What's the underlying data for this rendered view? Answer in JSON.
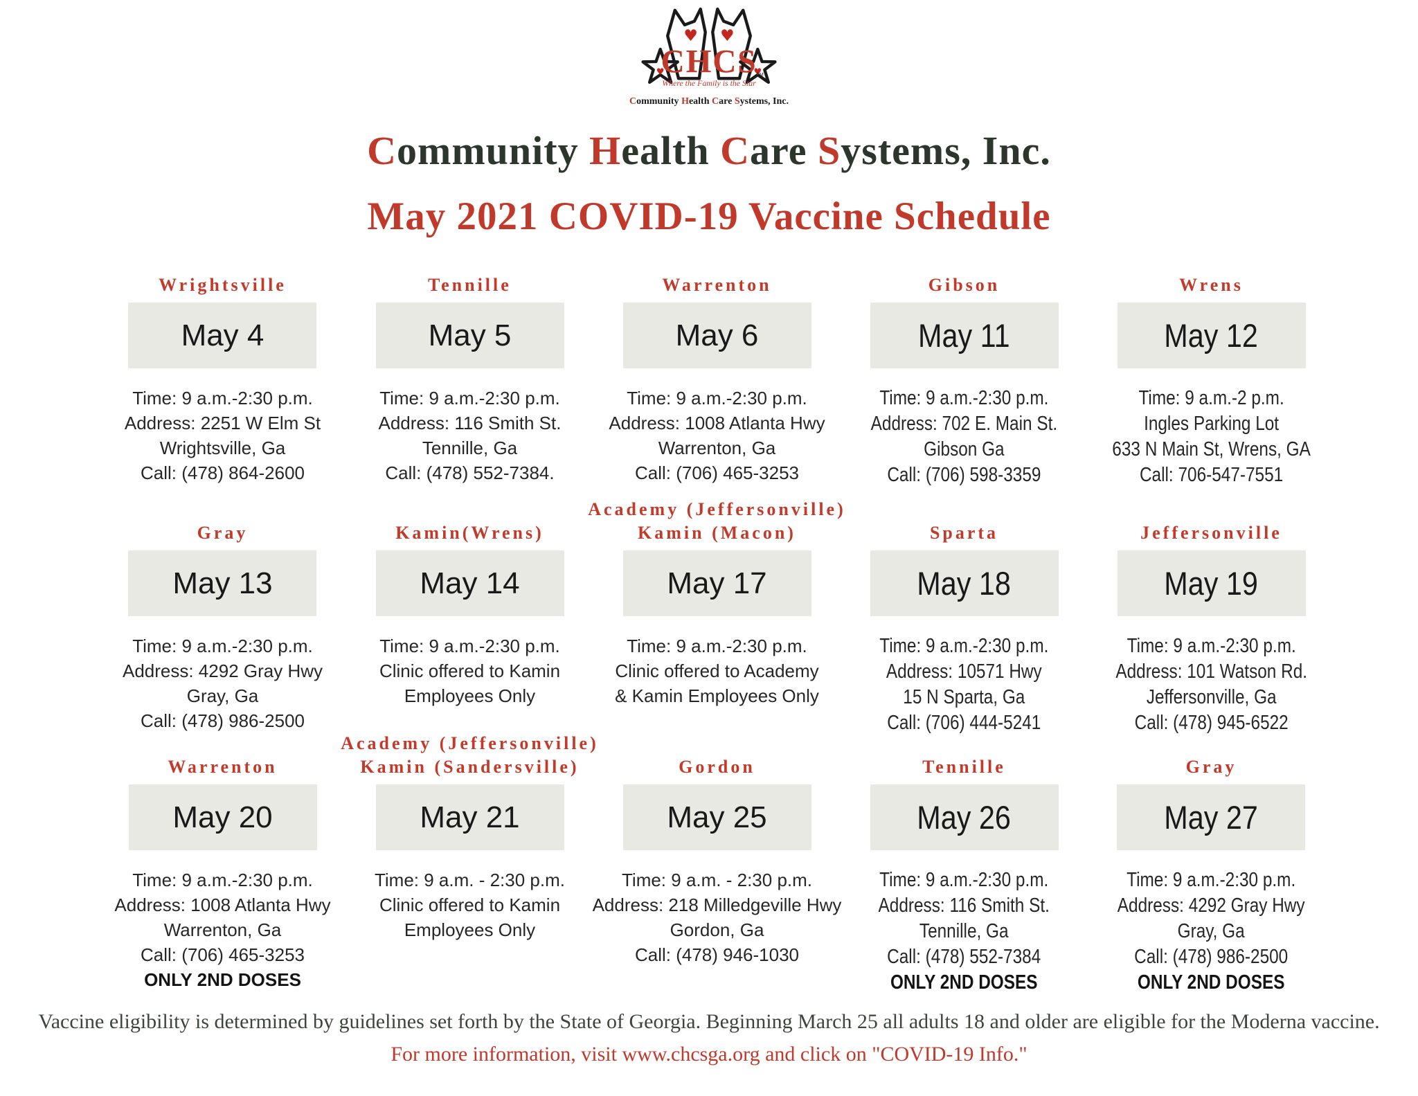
{
  "colors": {
    "accent_red": "#c0392b",
    "heading_dark": "#2c362c",
    "detail_text": "#272727",
    "date_box_bg": "#e9e9e3",
    "footer_dark": "#3c453c"
  },
  "logo": {
    "chcs": "CHCS",
    "tm": "TM",
    "tagline": "Where the Family is the Star",
    "brand": {
      "c1": "C",
      "r1": "ommunity ",
      "h1": "H",
      "r2": "ealth ",
      "c2": "C",
      "r3": "are ",
      "s1": "S",
      "r4": "ystems, Inc."
    }
  },
  "header": {
    "title": {
      "c1": "C",
      "r1": "ommunity ",
      "h1": "H",
      "r2": "ealth ",
      "c2": "C",
      "r3": "are ",
      "s1": "S",
      "r4": "ystems, Inc."
    },
    "subtitle": "May 2021 COVID-19 Vaccine Schedule"
  },
  "cards": [
    {
      "title": [
        "Wrightsville"
      ],
      "date": "May 4",
      "lines": [
        "Time: 9 a.m.-2:30 p.m.",
        "Address: 2251 W Elm St",
        "Wrightsville, Ga",
        "Call: (478) 864-2600"
      ],
      "doses": ""
    },
    {
      "title": [
        "Tennille"
      ],
      "date": "May 5",
      "lines": [
        "Time: 9 a.m.-2:30 p.m.",
        "Address: 116 Smith St.",
        "Tennille, Ga",
        "Call: (478) 552-7384."
      ],
      "doses": ""
    },
    {
      "title": [
        "Warrenton"
      ],
      "date": "May 6",
      "lines": [
        "Time: 9 a.m.-2:30 p.m.",
        "Address: 1008 Atlanta Hwy",
        "Warrenton, Ga",
        "Call: (706) 465-3253"
      ],
      "doses": ""
    },
    {
      "title": [
        "Gibson"
      ],
      "date": "May 11",
      "lines": [
        "Time: 9 a.m.-2:30 p.m.",
        "Address: 702 E. Main St.",
        "Gibson Ga",
        "Call: (706) 598-3359"
      ],
      "doses": ""
    },
    {
      "title": [
        "Wrens"
      ],
      "date": "May 12",
      "lines": [
        "Time: 9 a.m.-2 p.m.",
        "Ingles Parking Lot",
        "633 N Main St, Wrens, GA",
        "Call: 706-547-7551"
      ],
      "doses": ""
    },
    {
      "title": [
        "Gray"
      ],
      "date": "May 13",
      "lines": [
        "Time: 9 a.m.-2:30 p.m.",
        "Address: 4292 Gray Hwy",
        "Gray, Ga",
        "Call: (478) 986-2500"
      ],
      "doses": ""
    },
    {
      "title": [
        "Kamin(Wrens)"
      ],
      "date": "May 14",
      "lines": [
        "Time: 9 a.m.-2:30 p.m.",
        "Clinic offered to Kamin",
        "Employees Only"
      ],
      "doses": ""
    },
    {
      "title": [
        "Academy (Jeffersonville)",
        "Kamin (Macon)"
      ],
      "date": "May 17",
      "lines": [
        "Time: 9 a.m.-2:30 p.m.",
        "Clinic offered to Academy",
        "& Kamin Employees Only"
      ],
      "doses": ""
    },
    {
      "title": [
        "Sparta"
      ],
      "date": "May 18",
      "lines": [
        "Time: 9 a.m.-2:30 p.m.",
        "Address: 10571 Hwy",
        "15 N Sparta, Ga",
        "Call: (706) 444-5241"
      ],
      "doses": ""
    },
    {
      "title": [
        "Jeffersonville"
      ],
      "date": "May 19",
      "lines": [
        "Time: 9 a.m.-2:30 p.m.",
        "Address: 101 Watson Rd.",
        "Jeffersonville, Ga",
        "Call: (478) 945-6522"
      ],
      "doses": ""
    },
    {
      "title": [
        "Warrenton"
      ],
      "date": "May 20",
      "lines": [
        "Time: 9 a.m.-2:30 p.m.",
        "Address: 1008 Atlanta Hwy",
        "Warrenton, Ga",
        "Call: (706) 465-3253"
      ],
      "doses": "ONLY 2ND DOSES"
    },
    {
      "title": [
        "Academy (Jeffersonville)",
        "Kamin (Sandersville)"
      ],
      "date": "May 21",
      "lines": [
        "Time: 9 a.m. - 2:30 p.m.",
        "Clinic offered to Kamin",
        "Employees Only"
      ],
      "doses": ""
    },
    {
      "title": [
        "Gordon"
      ],
      "date": "May 25",
      "lines": [
        "Time: 9 a.m. - 2:30 p.m.",
        "Address: 218 Milledgeville Hwy",
        "Gordon, Ga",
        "Call: (478) 946-1030"
      ],
      "doses": ""
    },
    {
      "title": [
        "Tennille"
      ],
      "date": "May 26",
      "lines": [
        "Time: 9 a.m.-2:30 p.m.",
        "Address: 116 Smith St.",
        "Tennille, Ga",
        "Call: (478) 552-7384"
      ],
      "doses": "ONLY 2ND DOSES"
    },
    {
      "title": [
        "Gray"
      ],
      "date": "May 27",
      "lines": [
        "Time: 9 a.m.-2:30 p.m.",
        "Address: 4292 Gray Hwy",
        "Gray, Ga",
        "Call: (478) 986-2500"
      ],
      "doses": "ONLY 2ND DOSES"
    }
  ],
  "footer": {
    "text": "Vaccine eligibility is determined by guidelines set forth by the State of Georgia. Beginning March 25 all adults 18 and older are eligible for the Moderna vaccine. ",
    "highlight": "For more information, visit www.chcsga.org and click on \"COVID-19 Info.\""
  }
}
